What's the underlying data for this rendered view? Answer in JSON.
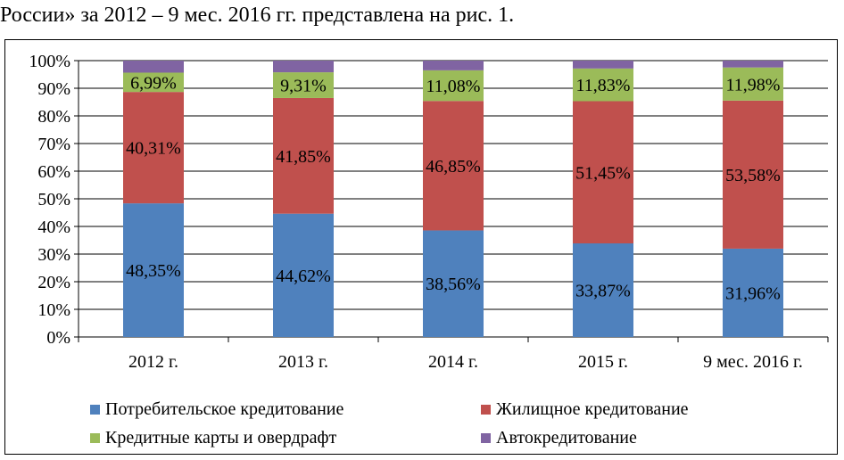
{
  "caption": "России» за 2012 – 9 мес. 2016 гг. представлена на рис. 1.",
  "colors": {
    "consumer": "#4f81bd",
    "housing": "#c0504d",
    "cards": "#9bbb59",
    "auto": "#8064a2"
  },
  "chart_data": {
    "type": "bar",
    "stacked": true,
    "categories": [
      "2012 г.",
      "2013 г.",
      "2014 г.",
      "2015 г.",
      "9 мес. 2016 г."
    ],
    "series": [
      {
        "name": "Потребительское кредитование",
        "values": [
          48.35,
          44.62,
          38.56,
          33.87,
          31.96
        ],
        "labels": [
          "48,35%",
          "44,62%",
          "38,56%",
          "33,87%",
          "31,96%"
        ]
      },
      {
        "name": "Жилищное кредитование",
        "values": [
          40.31,
          41.85,
          46.85,
          51.45,
          53.58
        ],
        "labels": [
          "40,31%",
          "41,85%",
          "46,85%",
          "51,45%",
          "53,58%"
        ]
      },
      {
        "name": "Кредитные карты и овердрафт",
        "values": [
          6.99,
          9.31,
          11.08,
          11.83,
          11.98
        ],
        "labels": [
          "6,99%",
          "9,31%",
          "11,08%",
          "11,83%",
          "11,98%"
        ]
      },
      {
        "name": "Автокредитование",
        "values": [
          4.35,
          4.22,
          3.51,
          2.85,
          2.48
        ],
        "labels": [
          "",
          "",
          "",
          "",
          ""
        ]
      }
    ],
    "yticks": [
      "0%",
      "10%",
      "20%",
      "30%",
      "40%",
      "50%",
      "60%",
      "70%",
      "80%",
      "90%",
      "100%"
    ],
    "ylim": [
      0,
      100
    ],
    "grid": true,
    "legend_position": "bottom"
  }
}
